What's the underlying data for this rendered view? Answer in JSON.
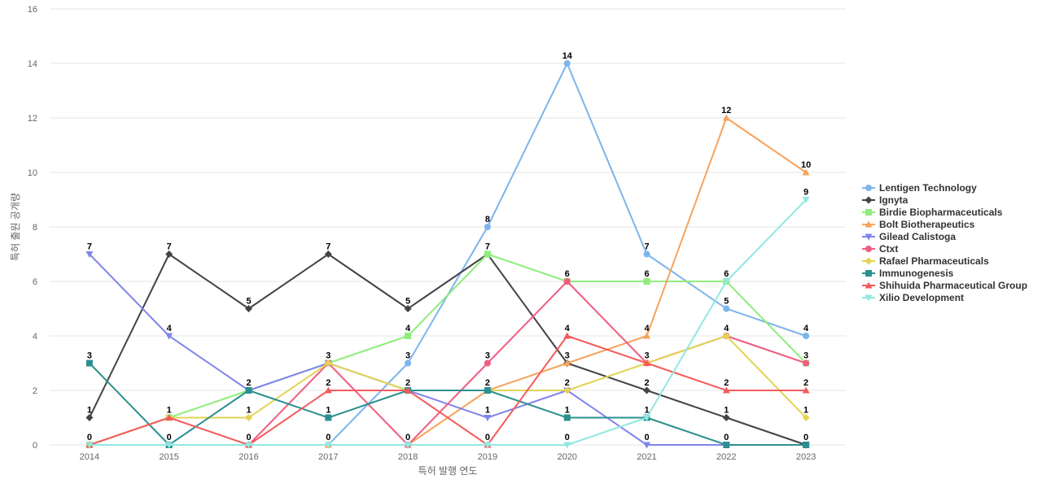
{
  "chart_data": {
    "type": "line",
    "xlabel": "특허 발행 연도",
    "ylabel": "특허 출원 공개량",
    "ylim": [
      0,
      16
    ],
    "yticks": [
      0,
      2,
      4,
      6,
      8,
      10,
      12,
      14,
      16
    ],
    "grid": true,
    "legend_position": "right",
    "categories": [
      "2014",
      "2015",
      "2016",
      "2017",
      "2018",
      "2019",
      "2020",
      "2021",
      "2022",
      "2023"
    ],
    "series": [
      {
        "name": "Lentigen Technology",
        "color": "#7cb5ec",
        "marker": "circle",
        "values": [
          0,
          0,
          0,
          0,
          3,
          8,
          14,
          7,
          5,
          4
        ]
      },
      {
        "name": "Ignyta",
        "color": "#434348",
        "marker": "diamond",
        "values": [
          1,
          7,
          5,
          7,
          5,
          7,
          3,
          2,
          1,
          0
        ]
      },
      {
        "name": "Birdie Biopharmaceuticals",
        "color": "#90ed7d",
        "marker": "square",
        "values": [
          0,
          1,
          2,
          3,
          4,
          7,
          6,
          6,
          6,
          3
        ]
      },
      {
        "name": "Bolt Biotherapeutics",
        "color": "#f7a35c",
        "marker": "triangle",
        "values": [
          0,
          0,
          0,
          0,
          0,
          2,
          3,
          4,
          12,
          10
        ]
      },
      {
        "name": "Gilead Calistoga",
        "color": "#8085e9",
        "marker": "triangle-down",
        "values": [
          7,
          4,
          2,
          3,
          2,
          1,
          2,
          0,
          0,
          0
        ]
      },
      {
        "name": "Ctxt",
        "color": "#f15c80",
        "marker": "circle",
        "values": [
          0,
          0,
          0,
          3,
          0,
          3,
          6,
          3,
          4,
          3
        ]
      },
      {
        "name": "Rafael Pharmaceuticals",
        "color": "#e4d354",
        "marker": "diamond",
        "values": [
          0,
          1,
          1,
          3,
          2,
          2,
          2,
          3,
          4,
          1
        ]
      },
      {
        "name": "Immunogenesis",
        "color": "#2b908f",
        "marker": "square",
        "values": [
          3,
          0,
          2,
          1,
          2,
          2,
          1,
          1,
          0,
          0
        ]
      },
      {
        "name": "Shihuida Pharmaceutical Group",
        "color": "#f45b5b",
        "marker": "triangle",
        "values": [
          0,
          1,
          0,
          2,
          2,
          0,
          4,
          3,
          2,
          2
        ]
      },
      {
        "name": "Xilio Development",
        "color": "#91e8e1",
        "marker": "triangle-down",
        "values": [
          0,
          0,
          0,
          0,
          0,
          0,
          0,
          1,
          6,
          9
        ]
      }
    ],
    "data_labels": [
      {
        "category": "2014",
        "series": "Gilead Calistoga",
        "text": "7"
      },
      {
        "category": "2014",
        "series": "Immunogenesis",
        "text": "3"
      },
      {
        "category": "2014",
        "series": "Ignyta",
        "text": "1"
      },
      {
        "category": "2014",
        "series": "Lentigen Technology",
        "text": "0"
      },
      {
        "category": "2015",
        "series": "Ignyta",
        "text": "7"
      },
      {
        "category": "2015",
        "series": "Gilead Calistoga",
        "text": "4"
      },
      {
        "category": "2015",
        "series": "Birdie Biopharmaceuticals",
        "text": "1"
      },
      {
        "category": "2015",
        "series": "Lentigen Technology",
        "text": "0"
      },
      {
        "category": "2016",
        "series": "Ignyta",
        "text": "5"
      },
      {
        "category": "2016",
        "series": "Birdie Biopharmaceuticals",
        "text": "2"
      },
      {
        "category": "2016",
        "series": "Rafael Pharmaceuticals",
        "text": "1"
      },
      {
        "category": "2016",
        "series": "Lentigen Technology",
        "text": "0"
      },
      {
        "category": "2017",
        "series": "Ignyta",
        "text": "7"
      },
      {
        "category": "2017",
        "series": "Birdie Biopharmaceuticals",
        "text": "3"
      },
      {
        "category": "2017",
        "series": "Shihuida Pharmaceutical Group",
        "text": "2"
      },
      {
        "category": "2017",
        "series": "Immunogenesis",
        "text": "1"
      },
      {
        "category": "2017",
        "series": "Lentigen Technology",
        "text": "0"
      },
      {
        "category": "2018",
        "series": "Ignyta",
        "text": "5"
      },
      {
        "category": "2018",
        "series": "Birdie Biopharmaceuticals",
        "text": "4"
      },
      {
        "category": "2018",
        "series": "Lentigen Technology",
        "text": "3"
      },
      {
        "category": "2018",
        "series": "Gilead Calistoga",
        "text": "2"
      },
      {
        "category": "2018",
        "series": "Ctxt",
        "text": "0"
      },
      {
        "category": "2019",
        "series": "Lentigen Technology",
        "text": "8"
      },
      {
        "category": "2019",
        "series": "Ignyta",
        "text": "7"
      },
      {
        "category": "2019",
        "series": "Ctxt",
        "text": "3"
      },
      {
        "category": "2019",
        "series": "Bolt Biotherapeutics",
        "text": "2"
      },
      {
        "category": "2019",
        "series": "Gilead Calistoga",
        "text": "1"
      },
      {
        "category": "2019",
        "series": "Shihuida Pharmaceutical Group",
        "text": "0"
      },
      {
        "category": "2020",
        "series": "Lentigen Technology",
        "text": "14"
      },
      {
        "category": "2020",
        "series": "Ctxt",
        "text": "6"
      },
      {
        "category": "2020",
        "series": "Shihuida Pharmaceutical Group",
        "text": "4"
      },
      {
        "category": "2020",
        "series": "Ignyta",
        "text": "3"
      },
      {
        "category": "2020",
        "series": "Rafael Pharmaceuticals",
        "text": "2"
      },
      {
        "category": "2020",
        "series": "Immunogenesis",
        "text": "1"
      },
      {
        "category": "2020",
        "series": "Xilio Development",
        "text": "0"
      },
      {
        "category": "2021",
        "series": "Lentigen Technology",
        "text": "7"
      },
      {
        "category": "2021",
        "series": "Birdie Biopharmaceuticals",
        "text": "6"
      },
      {
        "category": "2021",
        "series": "Bolt Biotherapeutics",
        "text": "4"
      },
      {
        "category": "2021",
        "series": "Ctxt",
        "text": "3"
      },
      {
        "category": "2021",
        "series": "Ignyta",
        "text": "2"
      },
      {
        "category": "2021",
        "series": "Immunogenesis",
        "text": "1"
      },
      {
        "category": "2021",
        "series": "Gilead Calistoga",
        "text": "0"
      },
      {
        "category": "2022",
        "series": "Bolt Biotherapeutics",
        "text": "12"
      },
      {
        "category": "2022",
        "series": "Birdie Biopharmaceuticals",
        "text": "6"
      },
      {
        "category": "2022",
        "series": "Lentigen Technology",
        "text": "5"
      },
      {
        "category": "2022",
        "series": "Ctxt",
        "text": "4"
      },
      {
        "category": "2022",
        "series": "Shihuida Pharmaceutical Group",
        "text": "2"
      },
      {
        "category": "2022",
        "series": "Ignyta",
        "text": "1"
      },
      {
        "category": "2022",
        "series": "Immunogenesis",
        "text": "0"
      },
      {
        "category": "2023",
        "series": "Bolt Biotherapeutics",
        "text": "10"
      },
      {
        "category": "2023",
        "series": "Xilio Development",
        "text": "9"
      },
      {
        "category": "2023",
        "series": "Lentigen Technology",
        "text": "4"
      },
      {
        "category": "2023",
        "series": "Ctxt",
        "text": "3"
      },
      {
        "category": "2023",
        "series": "Shihuida Pharmaceutical Group",
        "text": "2"
      },
      {
        "category": "2023",
        "series": "Rafael Pharmaceuticals",
        "text": "1"
      },
      {
        "category": "2023",
        "series": "Ignyta",
        "text": "0"
      }
    ]
  }
}
